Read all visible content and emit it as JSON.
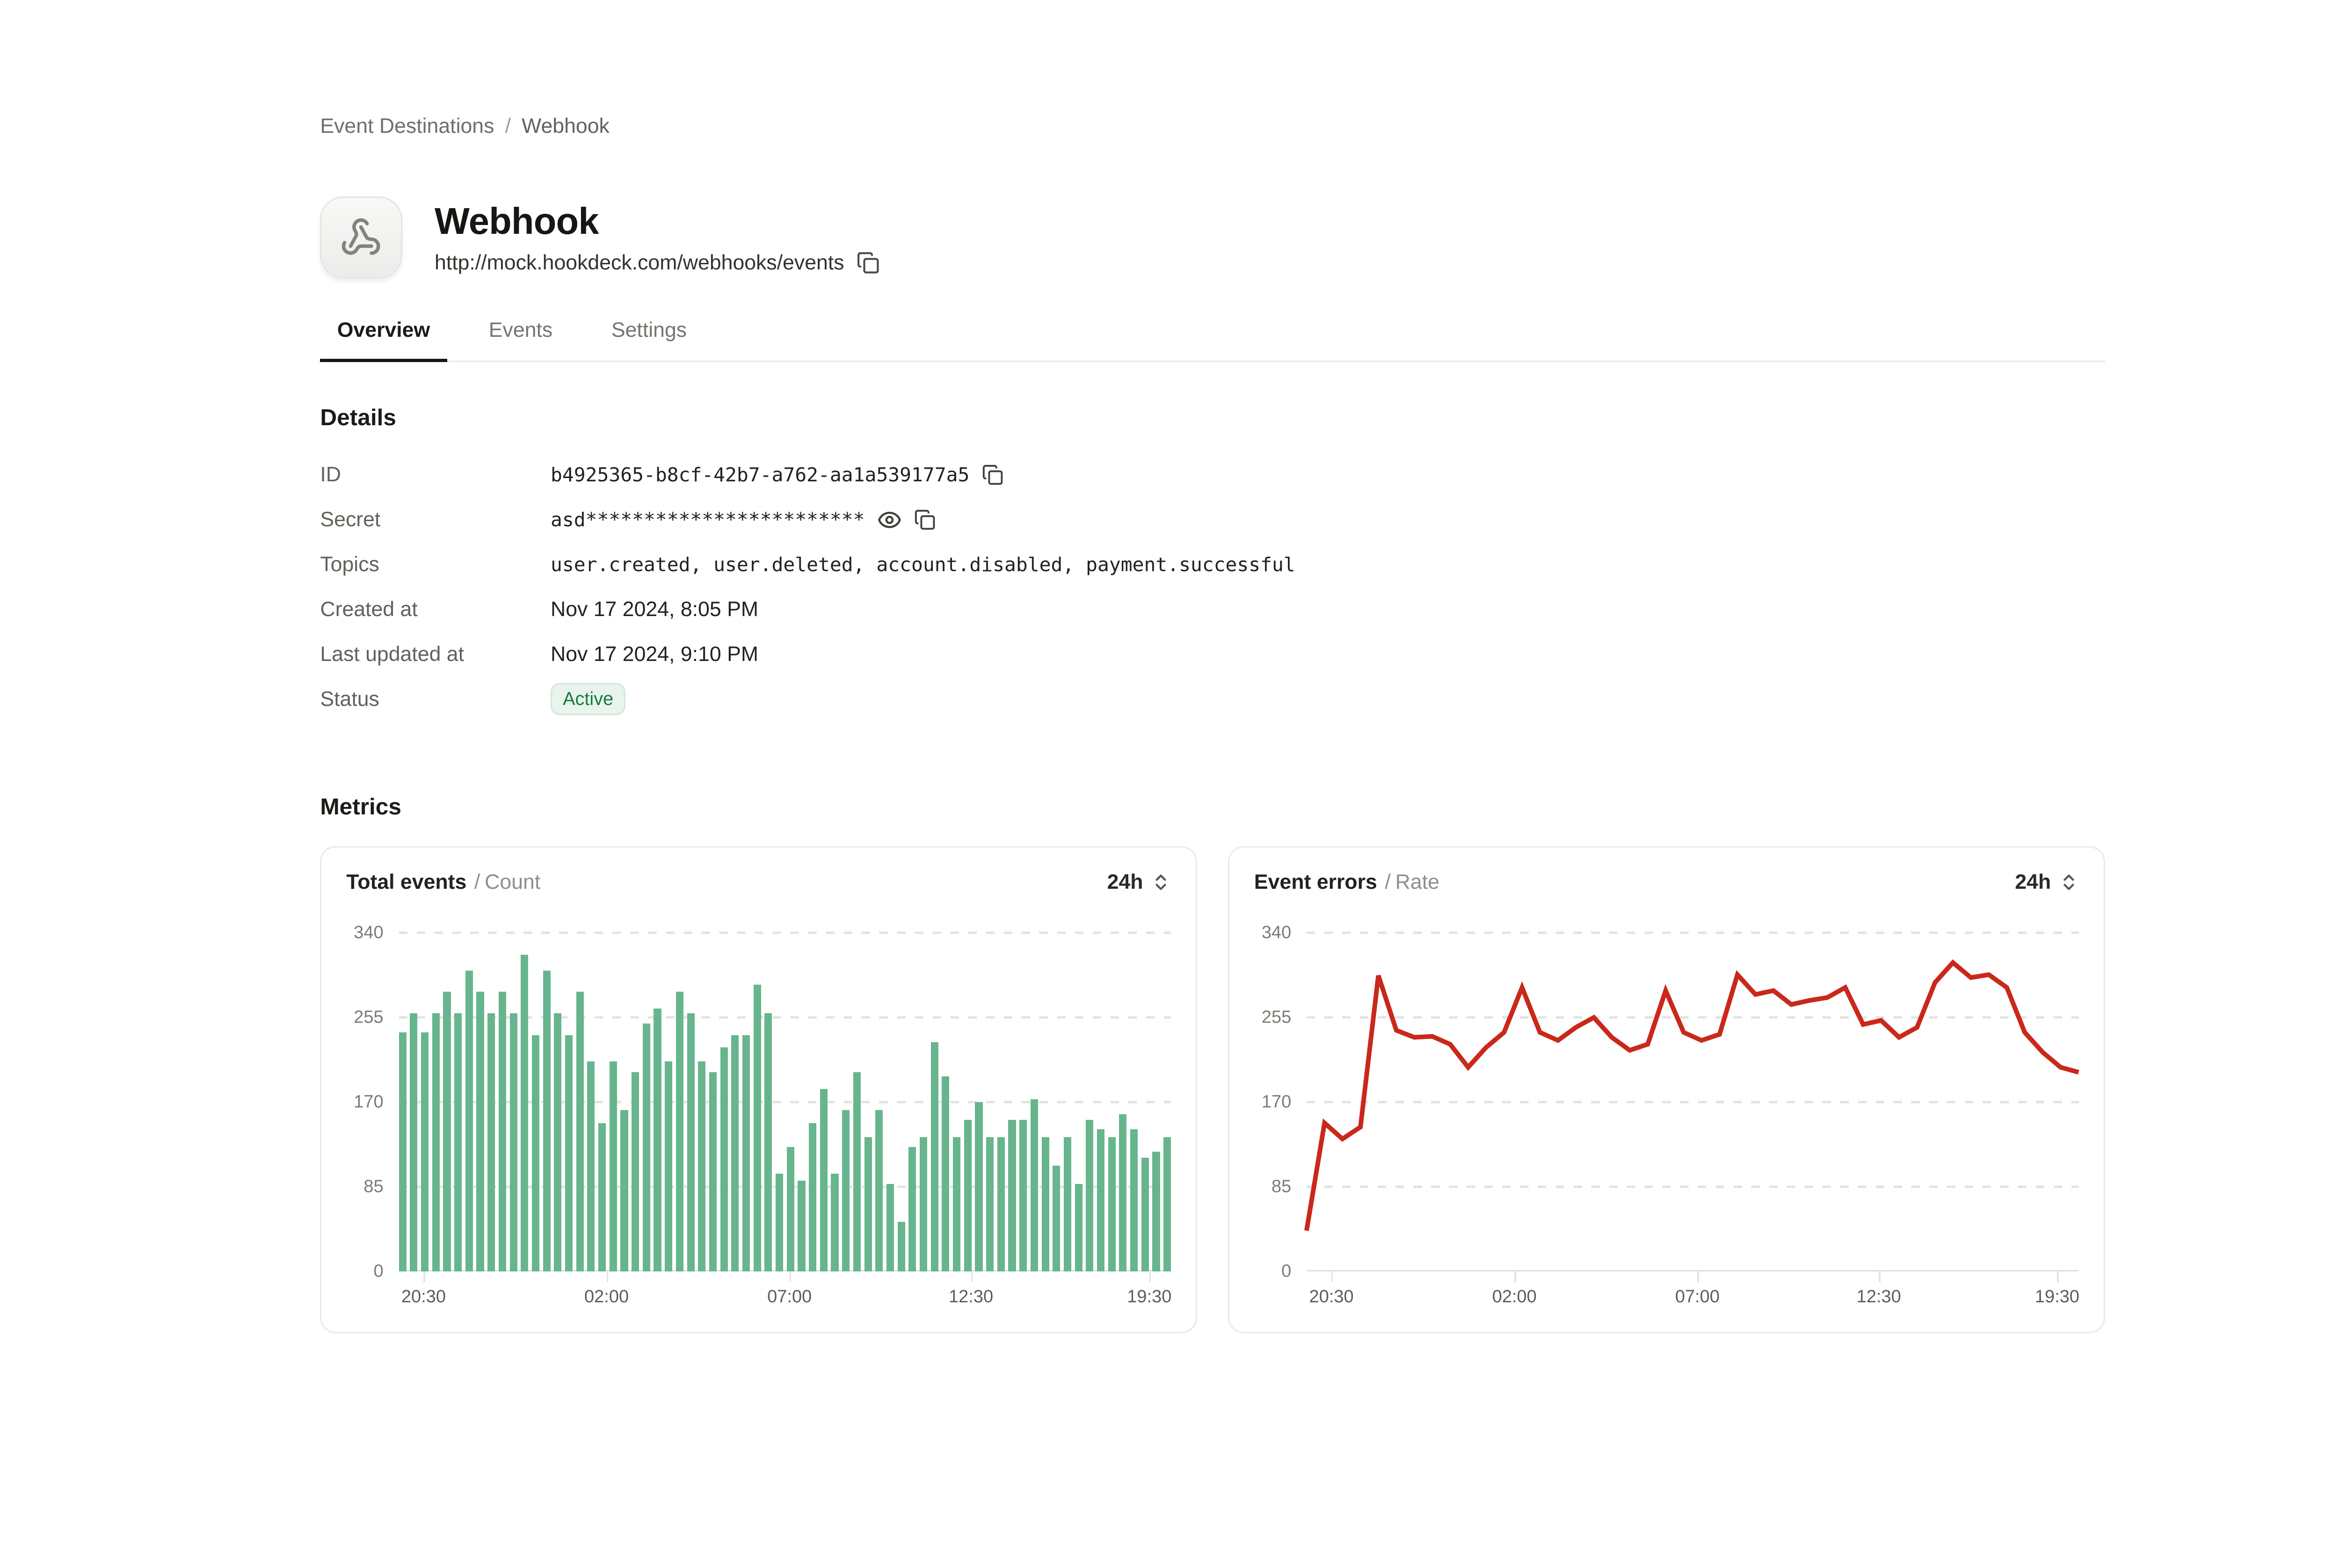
{
  "breadcrumb": {
    "parent": "Event Destinations",
    "separator": "/",
    "current": "Webhook"
  },
  "header": {
    "title": "Webhook",
    "url": "http://mock.hookdeck.com/webhooks/events"
  },
  "tabs": [
    {
      "label": "Overview",
      "active": true
    },
    {
      "label": "Events",
      "active": false
    },
    {
      "label": "Settings",
      "active": false
    }
  ],
  "details": {
    "heading": "Details",
    "rows": [
      {
        "label": "ID",
        "value": "b4925365-b8cf-42b7-a762-aa1a539177a5"
      },
      {
        "label": "Secret",
        "value": "asd************************"
      },
      {
        "label": "Topics",
        "value": "user.created, user.deleted, account.disabled, payment.successful"
      },
      {
        "label": "Created at",
        "value": "Nov 17 2024, 8:05 PM"
      },
      {
        "label": "Last updated at",
        "value": "Nov 17 2024, 9:10 PM"
      },
      {
        "label": "Status",
        "value": "Active"
      }
    ]
  },
  "metrics": {
    "heading": "Metrics"
  },
  "colors": {
    "bar_green": "#67b58d",
    "line_red": "#c9281a",
    "badge_text_green": "#187a41",
    "badge_bg_green": "#e9f4ec"
  },
  "chart_data": [
    {
      "type": "bar",
      "title": "Total events",
      "separator": "/",
      "subtitle": "Count",
      "range": "24h",
      "ylabel": "Count",
      "ylim": [
        0,
        340
      ],
      "yticks": [
        0,
        85,
        170,
        255,
        340
      ],
      "grid": "dashed-horizontal",
      "x_labels": [
        "20:30",
        "02:00",
        "07:00",
        "12:30",
        "19:30"
      ],
      "x_label_positions_pct": [
        3.2,
        26.9,
        50.6,
        74.1,
        97.2
      ],
      "color": "#67b58d",
      "values": [
        240,
        259,
        240,
        259,
        281,
        259,
        302,
        281,
        259,
        281,
        259,
        318,
        237,
        302,
        259,
        237,
        281,
        211,
        149,
        211,
        162,
        200,
        249,
        264,
        211,
        281,
        259,
        211,
        200,
        225,
        237,
        237,
        288,
        259,
        98,
        125,
        91,
        149,
        183,
        98,
        162,
        200,
        135,
        162,
        88,
        50,
        125,
        135,
        230,
        196,
        135,
        152,
        170,
        135,
        135,
        152,
        152,
        173,
        135,
        106,
        135,
        88,
        152,
        143,
        135,
        158,
        143,
        114,
        120,
        135
      ]
    },
    {
      "type": "line",
      "title": "Event errors",
      "separator": "/",
      "subtitle": "Rate",
      "range": "24h",
      "ylabel": "Rate",
      "ylim": [
        0,
        340
      ],
      "yticks": [
        0,
        85,
        170,
        255,
        340
      ],
      "grid": "dashed-horizontal",
      "x_labels": [
        "20:30",
        "02:00",
        "07:00",
        "12:30",
        "19:30"
      ],
      "x_label_positions_pct": [
        3.2,
        26.9,
        50.6,
        74.1,
        97.2
      ],
      "color": "#c9281a",
      "values": [
        41,
        149,
        133,
        145,
        297,
        242,
        235,
        236,
        228,
        205,
        225,
        240,
        285,
        240,
        232,
        245,
        255,
        235,
        222,
        228,
        282,
        240,
        232,
        238,
        298,
        278,
        282,
        268,
        272,
        275,
        285,
        248,
        252,
        235,
        245,
        290,
        310,
        295,
        298,
        285,
        240,
        220,
        205,
        200
      ]
    }
  ]
}
